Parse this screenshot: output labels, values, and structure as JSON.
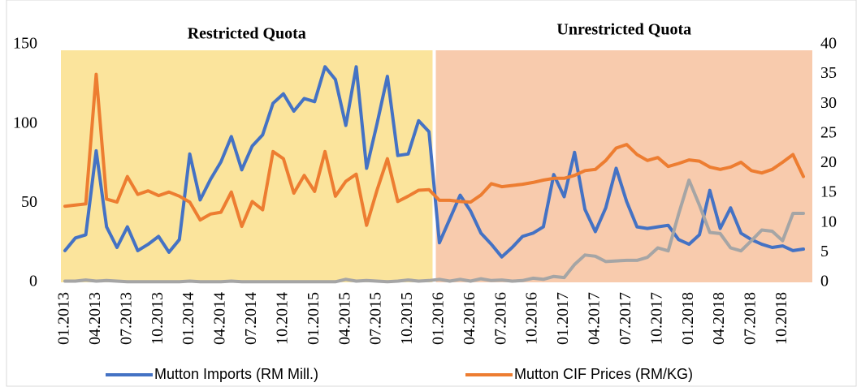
{
  "chart_data": {
    "type": "line",
    "categories": [
      "01.2013",
      null,
      null,
      "04.2013",
      null,
      null,
      "07.2013",
      null,
      null,
      "10.2013",
      null,
      null,
      "01.2014",
      null,
      null,
      "04.2014",
      null,
      null,
      "07.2014",
      null,
      null,
      "10.2014",
      null,
      null,
      "01.2015",
      null,
      null,
      "04.2015",
      null,
      null,
      "07.2015",
      null,
      null,
      "10.2015",
      null,
      null,
      "01.2016",
      null,
      null,
      "04.2016",
      null,
      null,
      "07.2016",
      null,
      null,
      "10.2016",
      null,
      null,
      "01.2017",
      null,
      null,
      "04.2017",
      null,
      null,
      "07.2017",
      null,
      null,
      "10.2017",
      null,
      null,
      "01.2018",
      null,
      null,
      "04.2018",
      null,
      null,
      "07.2018",
      null,
      null,
      "10.2018",
      null,
      null
    ],
    "regions": [
      {
        "label": "Restricted Quota",
        "start": 0,
        "end": 35,
        "color": "#fbe49c"
      },
      {
        "label": "Unrestricted Quota",
        "start": 36,
        "end": 71,
        "color": "#f8cbad"
      }
    ],
    "series": [
      {
        "name": "Mutton Imports (RM Mill.)",
        "color": "#4472c4",
        "values": [
          20,
          28,
          30,
          83,
          35,
          22,
          35,
          20,
          24,
          29,
          19,
          27,
          81,
          52,
          65,
          76,
          92,
          71,
          86,
          93,
          113,
          119,
          108,
          116,
          114,
          136,
          128,
          99,
          136,
          72,
          100,
          130,
          80,
          81,
          102,
          95,
          25,
          40,
          55,
          45,
          31,
          24,
          16,
          22,
          29,
          31,
          35,
          68,
          54,
          82,
          46,
          32,
          47,
          72,
          51,
          35,
          34,
          35,
          36,
          27,
          24,
          30,
          58,
          34,
          47,
          31,
          27,
          24,
          22,
          23,
          20,
          21
        ]
      },
      {
        "name": "Mutton CIF Prices (RM/KG)",
        "color": "#ed7d31",
        "axis": "y2",
        "values": [
          12.8,
          13.0,
          13.2,
          35,
          14,
          13.5,
          17.8,
          14.8,
          15.4,
          14.6,
          15.2,
          14.5,
          13.5,
          10.5,
          11.5,
          11.8,
          15.2,
          9.4,
          13.6,
          12.2,
          22,
          20.8,
          15,
          18,
          15.3,
          22,
          14.5,
          17,
          18.2,
          9.6,
          15.5,
          20.8,
          13.6,
          14.5,
          15.5,
          15.6,
          13.8,
          13.8,
          13.6,
          13.5,
          14.7,
          16.6,
          16.1,
          16.3,
          16.5,
          16.8,
          17.2,
          17.5,
          17.5,
          18,
          18.8,
          19,
          20.5,
          22.6,
          23.2,
          21.5,
          20.5,
          21,
          19.5,
          20,
          20.6,
          20.4,
          19.4,
          19,
          19.4,
          20.2,
          18.8,
          18.4,
          19,
          20.2,
          21.5,
          17.8
        ]
      },
      {
        "color": "#a5a5a5",
        "axis": "y2",
        "values": [
          0.2,
          0.2,
          0.4,
          0.2,
          0.3,
          0.2,
          0.1,
          0.1,
          0.1,
          0.1,
          0.1,
          0.1,
          0.2,
          0.1,
          0.1,
          0.1,
          0.2,
          0.1,
          0.1,
          0.1,
          0.1,
          0.1,
          0.1,
          0.1,
          0.1,
          0.1,
          0.1,
          0.5,
          0.2,
          0.3,
          0.2,
          0.1,
          0.2,
          0.4,
          0.2,
          0.3,
          0.5,
          0.2,
          0.5,
          0.2,
          0.6,
          0.3,
          0.4,
          0.2,
          0.3,
          0.7,
          0.5,
          1.0,
          0.8,
          3,
          4.6,
          4.4,
          3.5,
          3.6,
          3.7,
          3.7,
          4.2,
          5.8,
          5.3,
          11.5,
          17.2,
          13,
          8.4,
          8.2,
          5.8,
          5.3,
          7,
          8.8,
          8.6,
          7,
          11.6,
          11.6
        ]
      }
    ],
    "ylim": [
      0,
      150
    ],
    "yticks": [
      0,
      50,
      100,
      150
    ],
    "y2lim": [
      0,
      40
    ],
    "y2ticks": [
      0,
      5,
      10,
      15,
      20,
      25,
      30,
      35,
      40
    ],
    "grid": false
  }
}
